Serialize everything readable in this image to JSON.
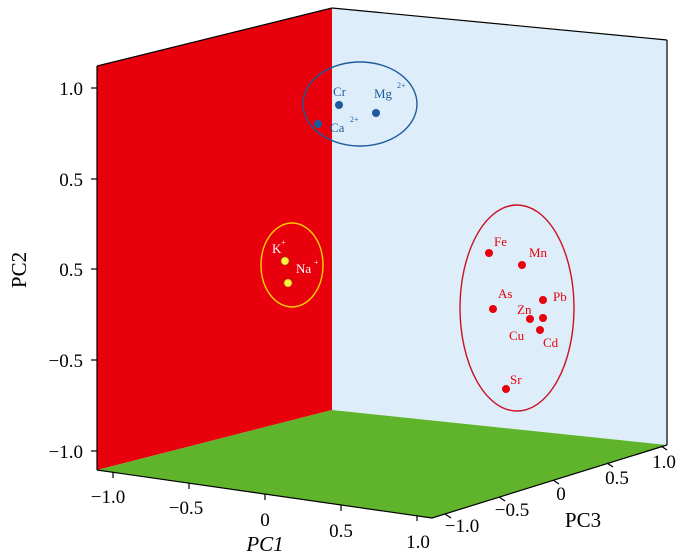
{
  "chart_data": {
    "type": "scatter",
    "title": "",
    "dimensions": 3,
    "axes": {
      "x": {
        "label": "PC1",
        "italic": true,
        "ticks": [
          "−1.0",
          "−0.5",
          "0",
          "0.5",
          "1.0"
        ]
      },
      "y": {
        "label": "PC2",
        "ticks": [
          "1.0",
          "0.5",
          "0.5",
          "−0.5",
          "−1.0"
        ]
      },
      "z": {
        "label": "PC3",
        "ticks": [
          "−1.0",
          "−0.5",
          "0",
          "0.5",
          "1.0"
        ]
      }
    },
    "walls": {
      "left": "#e8000c",
      "back": "#ddeefa",
      "floor": "#5fb42c"
    },
    "groups": [
      {
        "color": "#1f5a9e",
        "ellipse": "#1f5a9e",
        "points": [
          {
            "label": "Cr",
            "sup": "",
            "pc2": 0.86,
            "depth": 0.05
          },
          {
            "label": "Mg",
            "sup": "2+",
            "pc2": 0.82,
            "depth": 0.25
          },
          {
            "label": "Ca",
            "sup": "2+",
            "pc2": 0.78,
            "depth": -0.02
          }
        ]
      },
      {
        "color": "#ffee44",
        "ellipse": "#ffd000",
        "points": [
          {
            "label": "K",
            "sup": "+",
            "pc2": 0.05,
            "depth": -0.3
          },
          {
            "label": "Na",
            "sup": "+",
            "pc2": -0.05,
            "depth": -0.28
          }
        ]
      },
      {
        "color": "#e8000c",
        "ellipse": "#cc1122",
        "points": [
          {
            "label": "Fe",
            "sup": "",
            "pc2": 0.12,
            "depth": 0.8
          },
          {
            "label": "Mn",
            "sup": "",
            "pc2": 0.02,
            "depth": 0.9
          },
          {
            "label": "As",
            "sup": "",
            "pc2": -0.36,
            "depth": 0.82
          },
          {
            "label": "Pb",
            "sup": "",
            "pc2": -0.31,
            "depth": 0.95
          },
          {
            "label": "Zn",
            "sup": "",
            "pc2": -0.4,
            "depth": 0.88
          },
          {
            "label": "Cu",
            "sup": "",
            "pc2": -0.5,
            "depth": 0.9
          },
          {
            "label": "Cd",
            "sup": "",
            "pc2": -0.52,
            "depth": 0.97
          },
          {
            "label": "Sr",
            "sup": "",
            "pc2": -0.98,
            "depth": 0.85
          }
        ]
      }
    ]
  }
}
